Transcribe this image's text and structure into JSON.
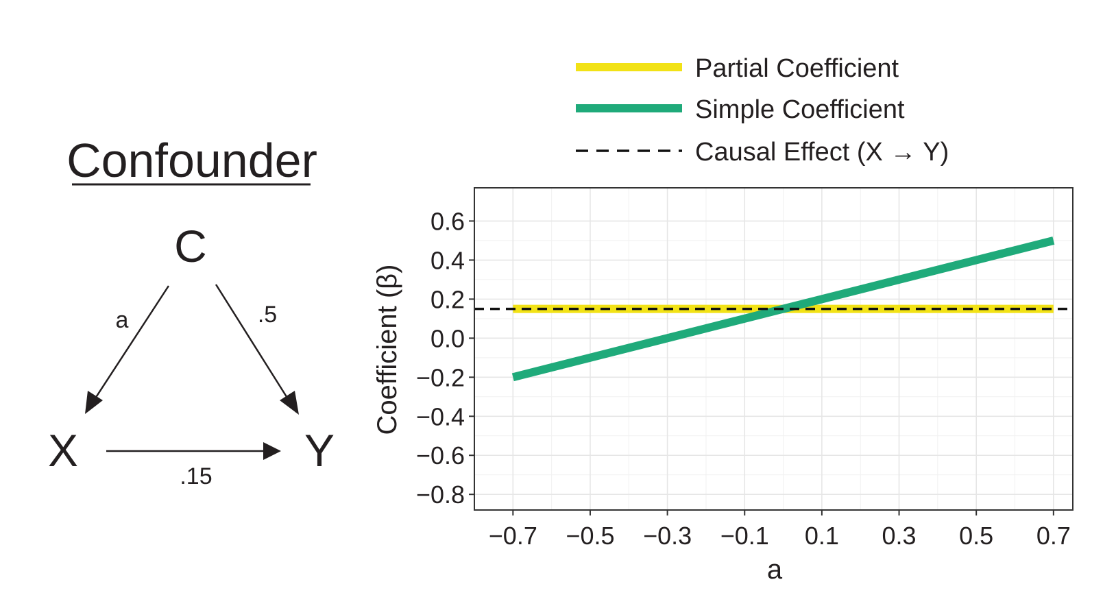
{
  "diagram": {
    "title": "Confounder",
    "nodes": {
      "c": "C",
      "x": "X",
      "y": "Y"
    },
    "edges": {
      "c_to_x": "a",
      "c_to_y": ".5",
      "x_to_y": ".15"
    }
  },
  "chart_data": {
    "type": "line",
    "xlabel": "a",
    "ylabel": "Coefficient (β)",
    "xlim": [
      -0.8,
      0.75
    ],
    "ylim": [
      -0.88,
      0.77
    ],
    "xticks": [
      -0.7,
      -0.5,
      -0.3,
      -0.1,
      0.1,
      0.3,
      0.5,
      0.7
    ],
    "xtick_labels": [
      "−0.7",
      "−0.5",
      "−0.3",
      "−0.1",
      "0.1",
      "0.3",
      "0.5",
      "0.7"
    ],
    "yticks": [
      0.6,
      0.4,
      0.2,
      0.0,
      -0.2,
      -0.4,
      -0.6,
      -0.8
    ],
    "ytick_labels": [
      "0.6",
      "0.4",
      "0.2",
      "0.0",
      "−0.2",
      "−0.4",
      "−0.6",
      "−0.8"
    ],
    "grid": true,
    "legend_position": "top",
    "series": [
      {
        "name": "Partial Coefficient",
        "color": "#f2e216",
        "style": "solid",
        "x": [
          -0.7,
          0.7
        ],
        "y": [
          0.15,
          0.15
        ]
      },
      {
        "name": "Simple Coefficient",
        "color": "#1faa7a",
        "style": "solid",
        "x": [
          -0.7,
          0.7
        ],
        "y": [
          -0.2,
          0.5
        ]
      },
      {
        "name": "Causal Effect (X → Y)",
        "color": "#111111",
        "style": "dashed",
        "x": [
          -0.8,
          0.75
        ],
        "y": [
          0.15,
          0.15
        ]
      }
    ]
  }
}
